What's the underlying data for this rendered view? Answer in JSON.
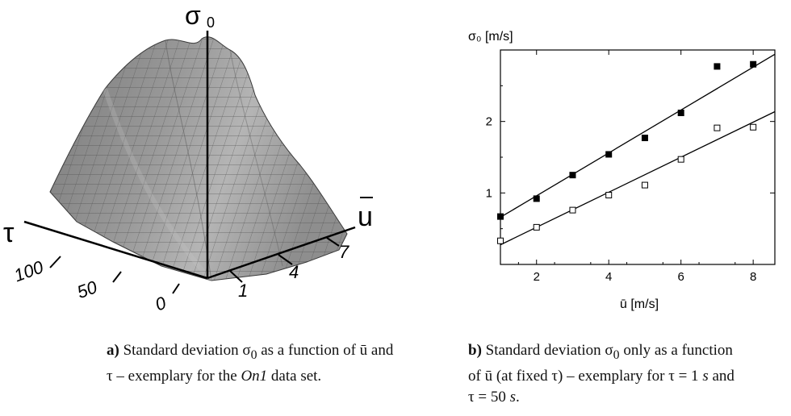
{
  "panel_a": {
    "z_label": "σ",
    "z_label_sub": "0",
    "tau_label": "τ",
    "u_label": "u",
    "tau_ticks": [
      "100",
      "50",
      "0"
    ],
    "u_ticks": [
      "1",
      "4",
      "7"
    ],
    "surface_color": "#8c8c8c"
  },
  "caption_a": {
    "tag": "a)",
    "text_1": " Standard deviation σ",
    "sub": "0",
    "text_2": " as a function of ū and τ – exemplary for the ",
    "dataset": "On1",
    "text_3": " data set."
  },
  "caption_b": {
    "tag": "b)",
    "text_1": " Standard deviation σ",
    "sub": "0",
    "text_2": " only as a function of ū (at fixed τ) – exemplary for τ = 1 ",
    "unit_1": "s",
    "text_3": " and τ = 50 ",
    "unit_2": "s",
    "text_4": "."
  },
  "chart_data": {
    "type": "scatter",
    "ylabel": "σ₀ [m/s]",
    "xlabel": "ū [m/s]",
    "xlim": [
      1,
      8.6
    ],
    "ylim": [
      0,
      3.0
    ],
    "x_ticks": [
      2,
      4,
      6,
      8
    ],
    "y_ticks": [
      1,
      2
    ],
    "series": [
      {
        "marker": "filled-square",
        "x": [
          1,
          2,
          3,
          4,
          5,
          6,
          7,
          8
        ],
        "y": [
          0.67,
          0.92,
          1.25,
          1.54,
          1.77,
          2.12,
          2.77,
          2.8
        ],
        "fit": [
          0.36,
          0.3
        ]
      },
      {
        "marker": "open-square",
        "x": [
          1,
          2,
          3,
          4,
          5,
          6,
          7,
          8
        ],
        "y": [
          0.33,
          0.52,
          0.76,
          0.97,
          1.11,
          1.47,
          1.91,
          1.92
        ],
        "fit": [
          0.03,
          0.245
        ]
      }
    ]
  }
}
